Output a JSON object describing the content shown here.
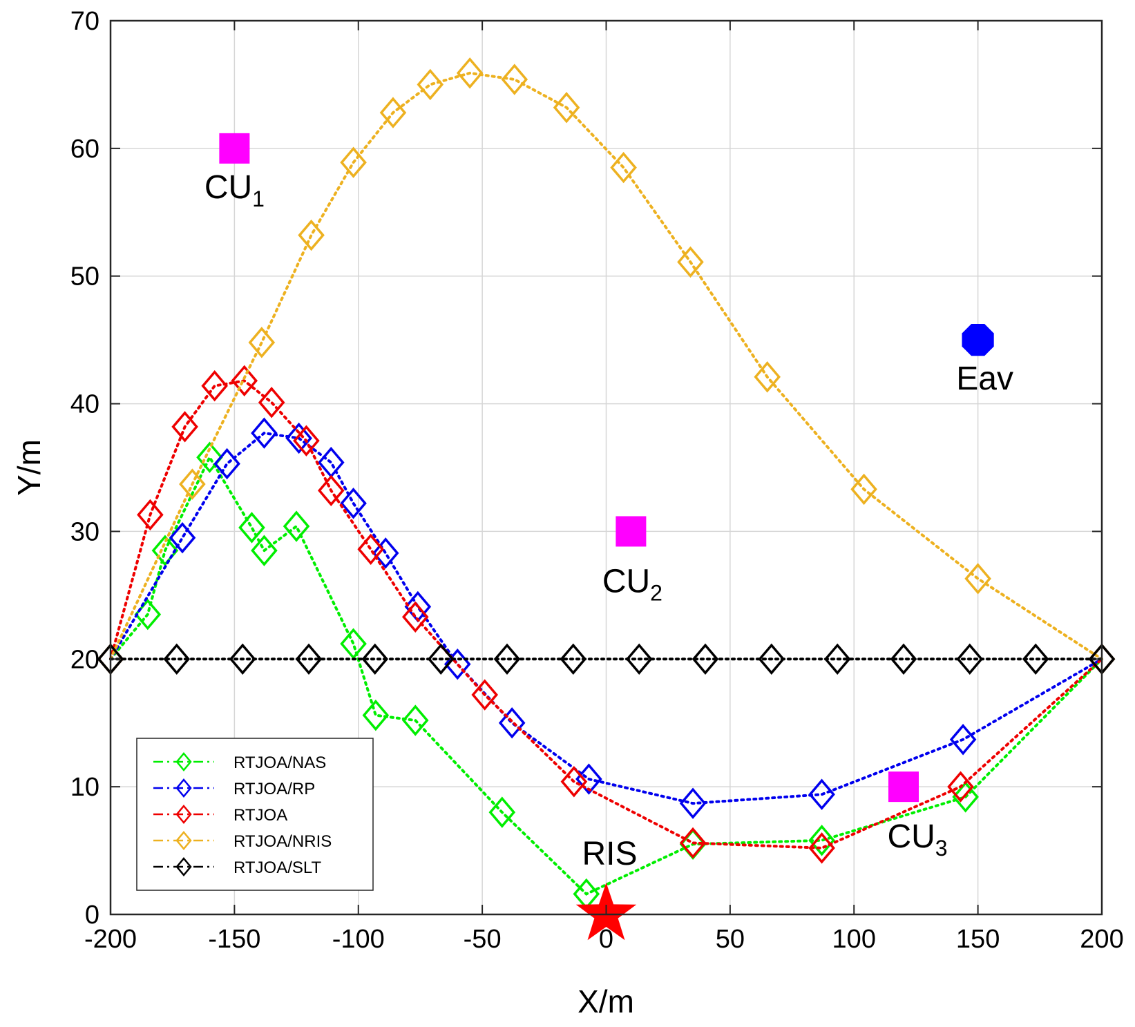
{
  "chart_data": {
    "type": "line",
    "title": "",
    "xlabel": "X/m",
    "ylabel": "Y/m",
    "xlim": [
      -200,
      200
    ],
    "ylim": [
      0,
      70
    ],
    "xticks": [
      -200,
      -150,
      -100,
      -50,
      0,
      50,
      100,
      150,
      200
    ],
    "yticks": [
      0,
      10,
      20,
      30,
      40,
      50,
      60,
      70
    ],
    "grid": true,
    "legend_position": "bottom-left",
    "series": [
      {
        "name": "RTJOA/NAS",
        "color": "#00ee00",
        "marker": "diamond",
        "line": "dotted",
        "points": [
          [
            -200,
            20
          ],
          [
            -185,
            23.5
          ],
          [
            -178,
            28.5
          ],
          [
            -160,
            35.8
          ],
          [
            -143,
            30.3
          ],
          [
            -138,
            28.5
          ],
          [
            -125,
            30.4
          ],
          [
            -102,
            21.2
          ],
          [
            -93,
            15.6
          ],
          [
            -77,
            15.2
          ],
          [
            -42,
            8
          ],
          [
            -8,
            1.6
          ],
          [
            35,
            5.5
          ],
          [
            87,
            5.8
          ],
          [
            145,
            9.2
          ],
          [
            200,
            20
          ]
        ]
      },
      {
        "name": "RTJOA/RP",
        "color": "#0000ee",
        "marker": "diamond",
        "line": "dotted",
        "points": [
          [
            -200,
            20
          ],
          [
            -171,
            29.5
          ],
          [
            -153,
            35.3
          ],
          [
            -138,
            37.7
          ],
          [
            -124,
            37.3
          ],
          [
            -111,
            35.4
          ],
          [
            -102,
            32.2
          ],
          [
            -89,
            28.3
          ],
          [
            -76,
            24.1
          ],
          [
            -60,
            19.6
          ],
          [
            -38,
            15
          ],
          [
            -7,
            10.6
          ],
          [
            35,
            8.7
          ],
          [
            87,
            9.4
          ],
          [
            144,
            13.7
          ],
          [
            200,
            20
          ]
        ]
      },
      {
        "name": "RTJOA",
        "color": "#ee0000",
        "marker": "diamond",
        "line": "dotted",
        "points": [
          [
            -200,
            20
          ],
          [
            -184,
            31.3
          ],
          [
            -170,
            38.2
          ],
          [
            -158,
            41.4
          ],
          [
            -146,
            41.8
          ],
          [
            -135,
            40.1
          ],
          [
            -121,
            37.1
          ],
          [
            -111,
            33.2
          ],
          [
            -95,
            28.6
          ],
          [
            -77,
            23.3
          ],
          [
            -49,
            17.2
          ],
          [
            -13,
            10.4
          ],
          [
            35,
            5.6
          ],
          [
            87,
            5.2
          ],
          [
            143,
            10
          ],
          [
            200,
            20
          ]
        ]
      },
      {
        "name": "RTJOA/NRIS",
        "color": "#edb120",
        "marker": "diamond",
        "line": "dotted",
        "points": [
          [
            -200,
            20
          ],
          [
            -167,
            33.7
          ],
          [
            -139,
            44.8
          ],
          [
            -119,
            53.2
          ],
          [
            -102,
            58.9
          ],
          [
            -86,
            62.8
          ],
          [
            -71,
            65
          ],
          [
            -55,
            65.9
          ],
          [
            -37,
            65.4
          ],
          [
            -16,
            63.2
          ],
          [
            7,
            58.5
          ],
          [
            34,
            51.1
          ],
          [
            65,
            42.1
          ],
          [
            104,
            33.3
          ],
          [
            150,
            26.3
          ],
          [
            200,
            20
          ]
        ]
      },
      {
        "name": "RTJOA/SLT",
        "color": "#000000",
        "marker": "diamond",
        "line": "dotted",
        "points": [
          [
            -200,
            20
          ],
          [
            -173.3,
            20
          ],
          [
            -146.7,
            20
          ],
          [
            -120,
            20
          ],
          [
            -93.3,
            20
          ],
          [
            -66.7,
            20
          ],
          [
            -40,
            20
          ],
          [
            -13.3,
            20
          ],
          [
            13.3,
            20
          ],
          [
            40,
            20
          ],
          [
            66.7,
            20
          ],
          [
            93.3,
            20
          ],
          [
            120,
            20
          ],
          [
            146.7,
            20
          ],
          [
            173.3,
            20
          ],
          [
            200,
            20
          ]
        ]
      }
    ],
    "annotations": [
      {
        "label": "CU",
        "sub": "1",
        "x": -150,
        "y": 60,
        "marker": "square",
        "color": "#ff00ff"
      },
      {
        "label": "CU",
        "sub": "2",
        "x": 10,
        "y": 30,
        "marker": "square",
        "color": "#ff00ff"
      },
      {
        "label": "CU",
        "sub": "3",
        "x": 120,
        "y": 10,
        "marker": "square",
        "color": "#ff00ff"
      },
      {
        "label": "Eav",
        "sub": "",
        "x": 150,
        "y": 45,
        "marker": "octagon",
        "color": "#0000ff"
      },
      {
        "label": "RIS",
        "sub": "",
        "x": 0,
        "y": 0,
        "marker": "star",
        "color": "#ff0000"
      }
    ]
  }
}
